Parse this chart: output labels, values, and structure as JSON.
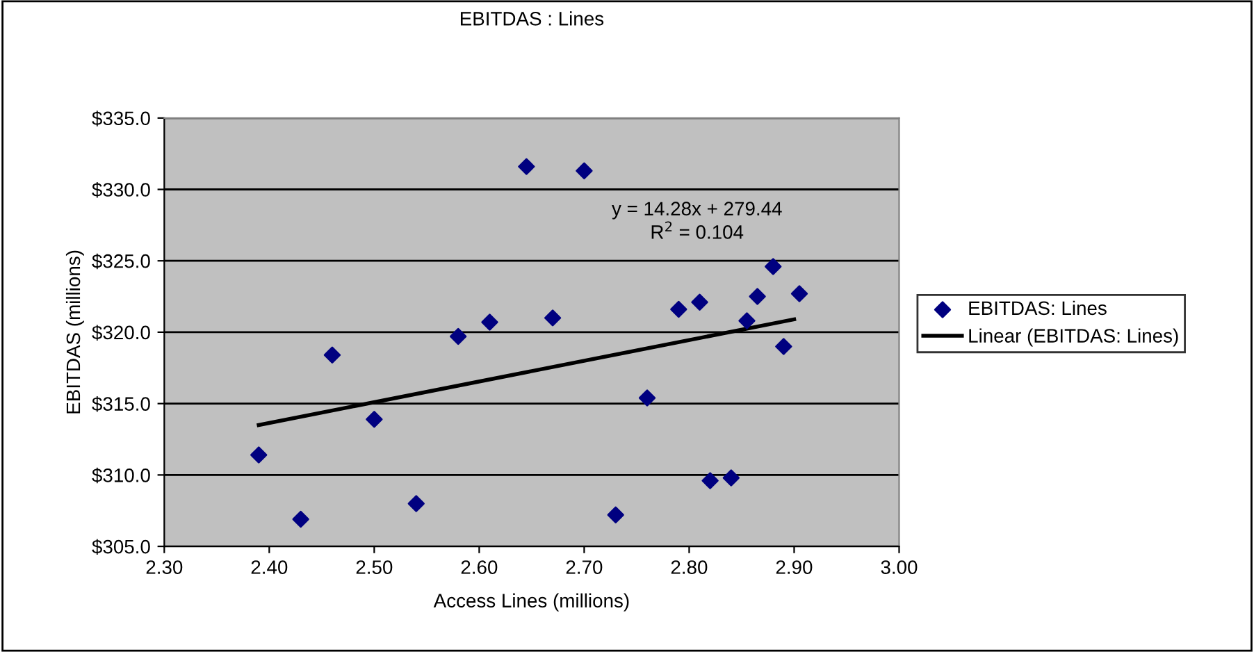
{
  "chart_data": {
    "type": "scatter",
    "title": "EBITDAS : Lines",
    "xlabel": "Access Lines (millions)",
    "ylabel": "EBITDAS (millions)",
    "xlim": [
      2.3,
      3.0
    ],
    "ylim": [
      305,
      335
    ],
    "xticks": [
      {
        "value": 2.3,
        "label": "2.30"
      },
      {
        "value": 2.4,
        "label": "2.40"
      },
      {
        "value": 2.5,
        "label": "2.50"
      },
      {
        "value": 2.6,
        "label": "2.60"
      },
      {
        "value": 2.7,
        "label": "2.70"
      },
      {
        "value": 2.8,
        "label": "2.80"
      },
      {
        "value": 2.9,
        "label": "2.90"
      },
      {
        "value": 3.0,
        "label": "3.00"
      }
    ],
    "yticks": [
      {
        "value": 305,
        "label": "$305.0"
      },
      {
        "value": 310,
        "label": "$310.0"
      },
      {
        "value": 315,
        "label": "$315.0"
      },
      {
        "value": 320,
        "label": "$320.0"
      },
      {
        "value": 325,
        "label": "$325.0"
      },
      {
        "value": 330,
        "label": "$330.0"
      },
      {
        "value": 335,
        "label": "$335.0"
      }
    ],
    "grid": "y",
    "legend": "right",
    "annotations": [
      "y = 14.28x + 279.44\nR$^{2}$ = 0.104"
    ],
    "series": [
      {
        "name": "EBITDAS: Lines",
        "marker": "diamond",
        "color": "#000080",
        "x": [
          2.39,
          2.43,
          2.46,
          2.5,
          2.54,
          2.58,
          2.61,
          2.645,
          2.67,
          2.7,
          2.73,
          2.76,
          2.79,
          2.81,
          2.82,
          2.84,
          2.855,
          2.865,
          2.88,
          2.89,
          2.905
        ],
        "values": [
          311.4,
          306.9,
          318.4,
          313.9,
          308.0,
          319.7,
          320.7,
          331.6,
          321.0,
          331.3,
          307.2,
          315.4,
          321.6,
          322.1,
          309.6,
          309.8,
          320.8,
          322.5,
          324.6,
          319.0,
          322.7
        ]
      },
      {
        "name": "Linear (EBITDAS: Lines)",
        "type": "line",
        "marker": "none",
        "color": "#000000",
        "x": [
          2.39,
          2.9
        ],
        "values": [
          313.5,
          320.9
        ]
      }
    ]
  }
}
